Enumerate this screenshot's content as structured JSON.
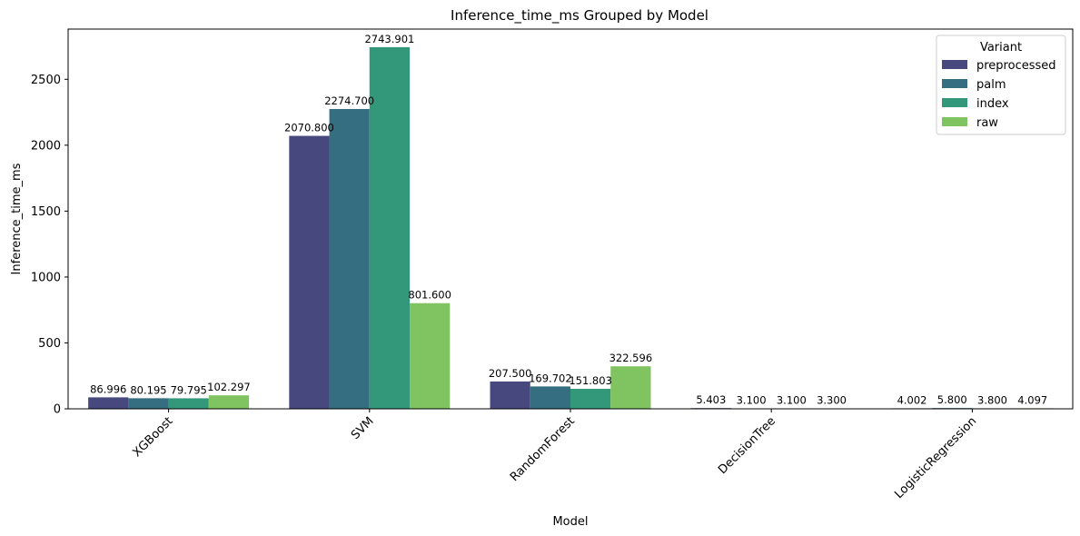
{
  "chart_data": {
    "type": "bar",
    "title": "Inference_time_ms Grouped by Model",
    "xlabel": "Model",
    "ylabel": "Inference_time_ms",
    "categories": [
      "XGBoost",
      "SVM",
      "RandomForest",
      "DecisionTree",
      "LogisticRegression"
    ],
    "series": [
      {
        "name": "preprocessed",
        "color": "#46487e",
        "values": [
          86.996,
          2070.8,
          207.5,
          5.403,
          4.002
        ],
        "labels": [
          "86.996",
          "2070.800",
          "207.500",
          "5.403",
          "4.002"
        ]
      },
      {
        "name": "palm",
        "color": "#356e80",
        "values": [
          80.195,
          2274.7,
          169.702,
          3.1,
          5.8
        ],
        "labels": [
          "80.195",
          "2274.700",
          "169.702",
          "3.100",
          "5.800"
        ]
      },
      {
        "name": "index",
        "color": "#33987a",
        "values": [
          79.795,
          2743.901,
          151.803,
          3.1,
          3.8
        ],
        "labels": [
          "79.795",
          "2743.901",
          "151.803",
          "3.100",
          "3.800"
        ]
      },
      {
        "name": "raw",
        "color": "#80c462",
        "values": [
          102.297,
          801.6,
          322.596,
          3.3,
          4.097
        ],
        "labels": [
          "102.297",
          "801.600",
          "322.596",
          "3.300",
          "4.097"
        ]
      }
    ],
    "ylim": [
      0,
      2881.1
    ],
    "yticks": [
      0,
      500,
      1000,
      1500,
      2000,
      2500
    ],
    "ytick_labels": [
      "0",
      "500",
      "1000",
      "1500",
      "2000",
      "2500"
    ],
    "legend": {
      "title": "Variant",
      "placement": "top-right"
    },
    "grid": false
  }
}
